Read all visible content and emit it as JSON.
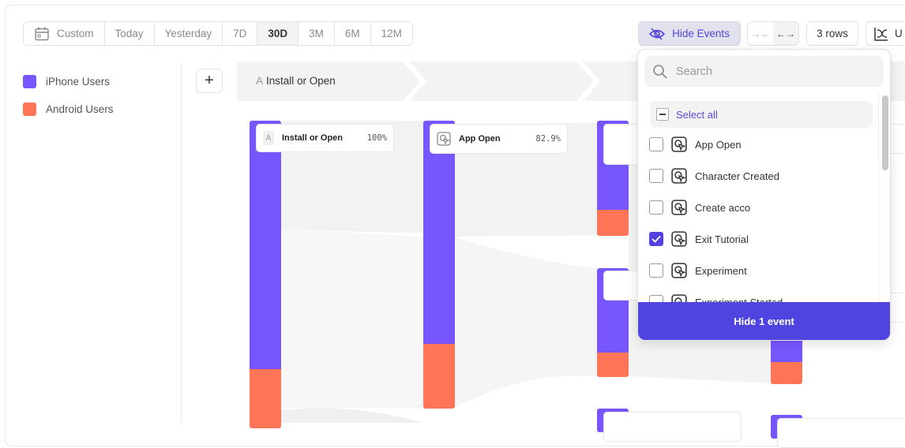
{
  "date_range": {
    "options": [
      "Custom",
      "Today",
      "Yesterday",
      "7D",
      "30D",
      "3M",
      "6M",
      "12M"
    ],
    "selected": "30D"
  },
  "toolbar": {
    "hide_events": "Hide Events",
    "rows": "3 rows",
    "chart_type_partial": "U"
  },
  "legend": [
    {
      "label": "iPhone Users",
      "color": "#7856ff"
    },
    {
      "label": "Android Users",
      "color": "#ff7557"
    }
  ],
  "flow": {
    "step_header": {
      "letter": "A",
      "label": "Install or Open"
    },
    "nodes": [
      {
        "letter": "A",
        "label": "Install or Open",
        "pct": "100%"
      },
      {
        "label": "App Open",
        "pct": "82.9%"
      }
    ]
  },
  "dropdown": {
    "search_placeholder": "Search",
    "select_all": "Select all",
    "items": [
      {
        "label": "App Open",
        "checked": false
      },
      {
        "label": "Character Created",
        "checked": false
      },
      {
        "label": "Create acco",
        "checked": false
      },
      {
        "label": "Exit Tutorial",
        "checked": true
      },
      {
        "label": "Experiment",
        "checked": false
      },
      {
        "label": "Experiment Started",
        "checked": false
      }
    ],
    "apply_button": "Hide 1 event"
  },
  "colors": {
    "accent": "#4f44e0",
    "iphone": "#7856ff",
    "android": "#ff7557"
  }
}
